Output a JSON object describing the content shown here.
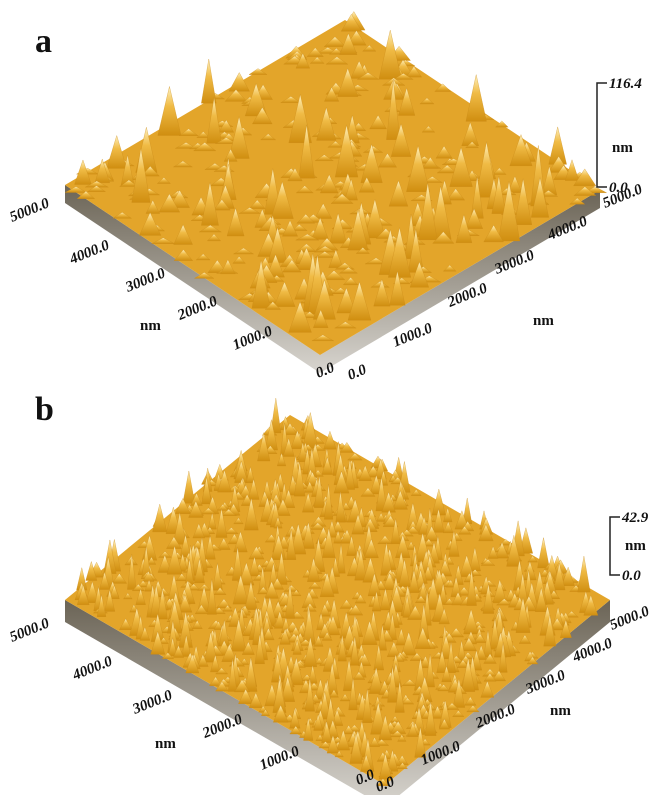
{
  "panels": [
    {
      "label": "a",
      "x_axis": {
        "ticks": [
          "0.0",
          "1000.0",
          "2000.0",
          "3000.0",
          "4000.0",
          "5000.0"
        ],
        "unit": "nm"
      },
      "y_axis": {
        "ticks": [
          "0.0",
          "1000.0",
          "2000.0",
          "3000.0",
          "4000.0",
          "5000.0"
        ],
        "unit": "nm"
      },
      "z_axis": {
        "max": "116.4",
        "unit": "nm",
        "min": "0.0"
      }
    },
    {
      "label": "b",
      "x_axis": {
        "ticks": [
          "0.0",
          "1000.0",
          "2000.0",
          "3000.0",
          "4000.0",
          "5000.0"
        ],
        "unit": "nm"
      },
      "y_axis": {
        "ticks": [
          "0.0",
          "1000.0",
          "2000.0",
          "3000.0",
          "4000.0",
          "5000.0"
        ],
        "unit": "nm"
      },
      "z_axis": {
        "max": "42.9",
        "unit": "nm",
        "min": "0.0"
      }
    }
  ]
}
